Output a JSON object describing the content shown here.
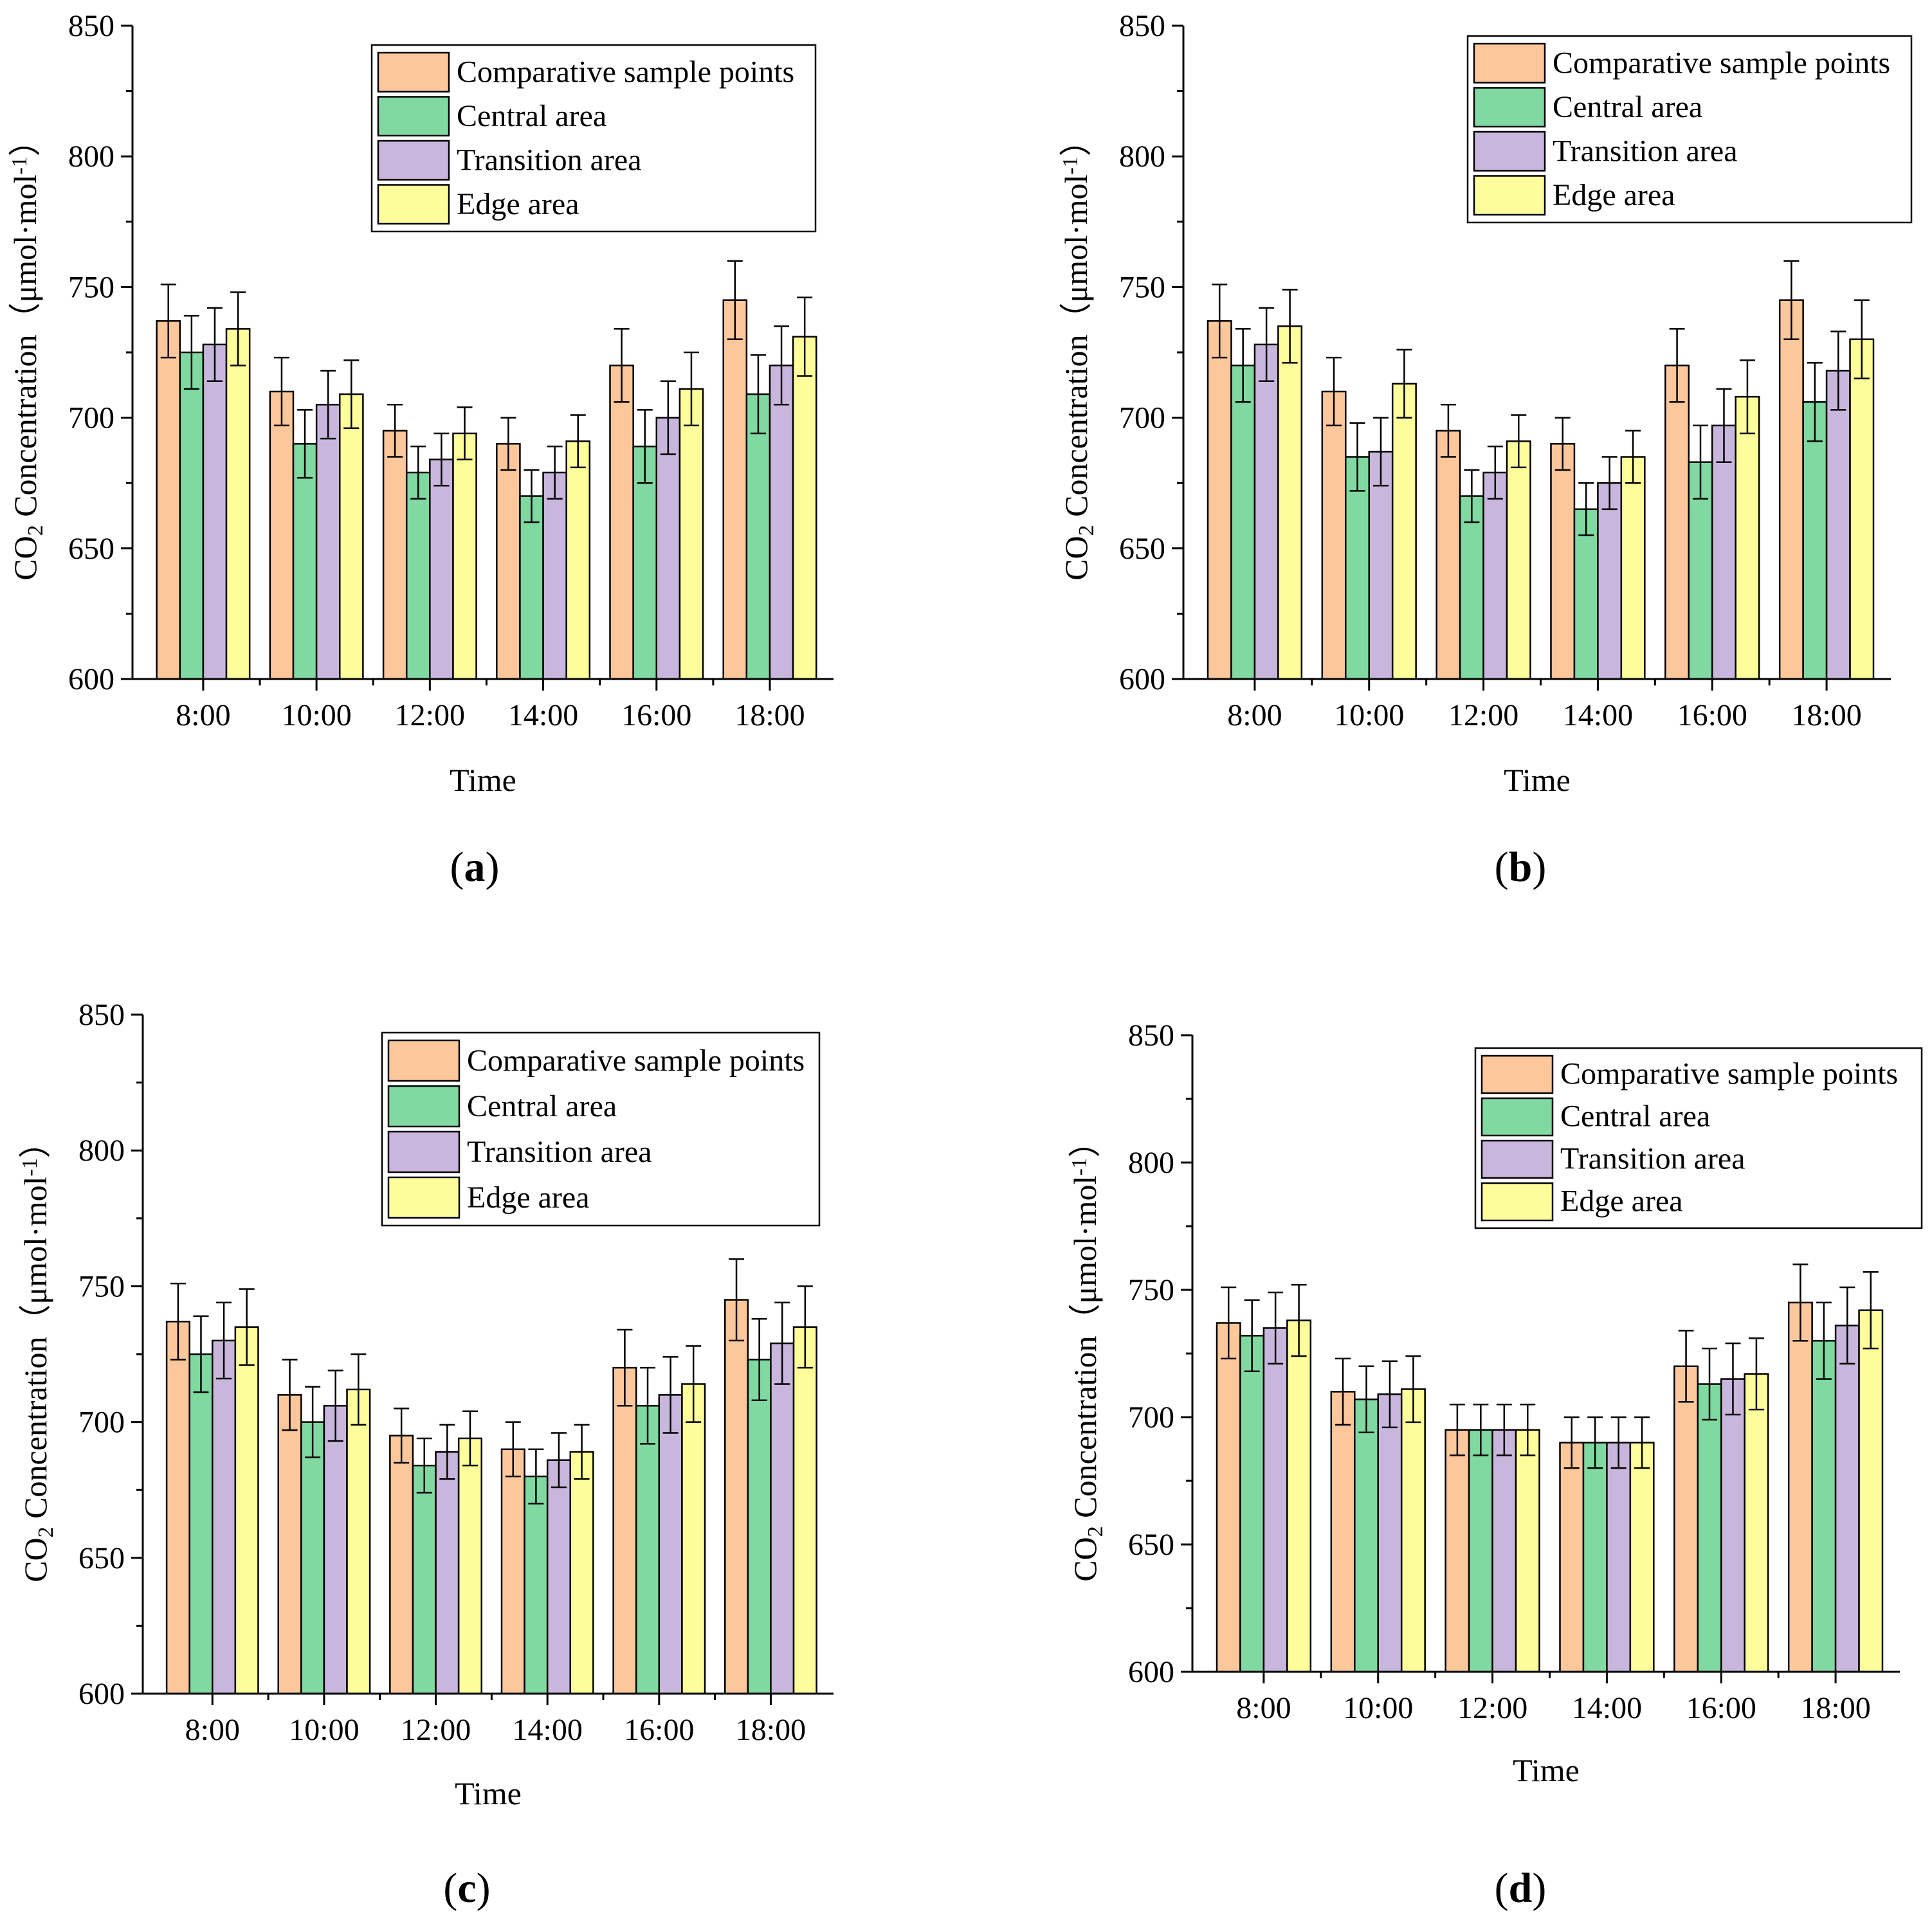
{
  "figure": {
    "panel_labels": [
      "a",
      "b",
      "c",
      "d"
    ],
    "series_colors": {
      "Comparative sample points": "#fcc79b",
      "Central area": "#7fd9a0",
      "Transition area": "#c9b6dc",
      "Edge area": "#fdfd9b"
    }
  },
  "chart_data": [
    {
      "panel": "a",
      "type": "bar",
      "title": "",
      "xlabel": "Time",
      "ylabel": {
        "prefix": "CO",
        "sub": "2",
        "main": " Concentration（μmol·mol",
        "sup": "-1",
        "suffix": "）"
      },
      "ylim": [
        600,
        850
      ],
      "yticks": [
        600,
        650,
        700,
        750,
        800,
        850
      ],
      "categories": [
        "8:00",
        "10:00",
        "12:00",
        "14:00",
        "16:00",
        "18:00"
      ],
      "series": [
        {
          "name": "Comparative sample points",
          "values": [
            737,
            710,
            695,
            690,
            720,
            745
          ],
          "errors": [
            14,
            13,
            10,
            10,
            14,
            15
          ]
        },
        {
          "name": "Central area",
          "values": [
            725,
            690,
            679,
            670,
            689,
            709
          ],
          "errors": [
            14,
            13,
            10,
            10,
            14,
            15
          ]
        },
        {
          "name": "Transition area",
          "values": [
            728,
            705,
            684,
            679,
            700,
            720
          ],
          "errors": [
            14,
            13,
            10,
            10,
            14,
            15
          ]
        },
        {
          "name": "Edge area",
          "values": [
            734,
            709,
            694,
            691,
            711,
            731
          ],
          "errors": [
            14,
            13,
            10,
            10,
            14,
            15
          ]
        }
      ],
      "legend": "top-right"
    },
    {
      "panel": "b",
      "type": "bar",
      "title": "",
      "xlabel": "Time",
      "ylabel": {
        "prefix": "CO",
        "sub": "2",
        "main": " Concentration（μmol·mol",
        "sup": "-1",
        "suffix": "）"
      },
      "ylim": [
        600,
        850
      ],
      "yticks": [
        600,
        650,
        700,
        750,
        800,
        850
      ],
      "categories": [
        "8:00",
        "10:00",
        "12:00",
        "14:00",
        "16:00",
        "18:00"
      ],
      "series": [
        {
          "name": "Comparative sample points",
          "values": [
            737,
            710,
            695,
            690,
            720,
            745
          ],
          "errors": [
            14,
            13,
            10,
            10,
            14,
            15
          ]
        },
        {
          "name": "Central area",
          "values": [
            720,
            685,
            670,
            665,
            683,
            706
          ],
          "errors": [
            14,
            13,
            10,
            10,
            14,
            15
          ]
        },
        {
          "name": "Transition area",
          "values": [
            728,
            687,
            679,
            675,
            697,
            718
          ],
          "errors": [
            14,
            13,
            10,
            10,
            14,
            15
          ]
        },
        {
          "name": "Edge area",
          "values": [
            735,
            713,
            691,
            685,
            708,
            730
          ],
          "errors": [
            14,
            13,
            10,
            10,
            14,
            15
          ]
        }
      ],
      "legend": "top-right"
    },
    {
      "panel": "c",
      "type": "bar",
      "title": "",
      "xlabel": "Time",
      "ylabel": {
        "prefix": "CO",
        "sub": "2",
        "main": " Concentration（μmol·mol",
        "sup": "-1",
        "suffix": "）"
      },
      "ylim": [
        600,
        850
      ],
      "yticks": [
        600,
        650,
        700,
        750,
        800,
        850
      ],
      "categories": [
        "8:00",
        "10:00",
        "12:00",
        "14:00",
        "16:00",
        "18:00"
      ],
      "series": [
        {
          "name": "Comparative sample points",
          "values": [
            737,
            710,
            695,
            690,
            720,
            745
          ],
          "errors": [
            14,
            13,
            10,
            10,
            14,
            15
          ]
        },
        {
          "name": "Central area",
          "values": [
            725,
            700,
            684,
            680,
            706,
            723
          ],
          "errors": [
            14,
            13,
            10,
            10,
            14,
            15
          ]
        },
        {
          "name": "Transition area",
          "values": [
            730,
            706,
            689,
            686,
            710,
            729
          ],
          "errors": [
            14,
            13,
            10,
            10,
            14,
            15
          ]
        },
        {
          "name": "Edge area",
          "values": [
            735,
            712,
            694,
            689,
            714,
            735
          ],
          "errors": [
            14,
            13,
            10,
            10,
            14,
            15
          ]
        }
      ],
      "legend": "top-right"
    },
    {
      "panel": "d",
      "type": "bar",
      "title": "",
      "xlabel": "Time",
      "ylabel": {
        "prefix": "CO",
        "sub": "2",
        "main": " Concentration（μmol·mol",
        "sup": "-1",
        "suffix": "）"
      },
      "ylim": [
        600,
        850
      ],
      "yticks": [
        600,
        650,
        700,
        750,
        800,
        850
      ],
      "categories": [
        "8:00",
        "10:00",
        "12:00",
        "14:00",
        "16:00",
        "18:00"
      ],
      "series": [
        {
          "name": "Comparative sample points",
          "values": [
            737,
            710,
            695,
            690,
            720,
            745
          ],
          "errors": [
            14,
            13,
            10,
            10,
            14,
            15
          ]
        },
        {
          "name": "Central area",
          "values": [
            732,
            707,
            695,
            690,
            713,
            730
          ],
          "errors": [
            14,
            13,
            10,
            10,
            14,
            15
          ]
        },
        {
          "name": "Transition area",
          "values": [
            735,
            709,
            695,
            690,
            715,
            736
          ],
          "errors": [
            14,
            13,
            10,
            10,
            14,
            15
          ]
        },
        {
          "name": "Edge area",
          "values": [
            738,
            711,
            695,
            690,
            717,
            742
          ],
          "errors": [
            14,
            13,
            10,
            10,
            14,
            15
          ]
        }
      ],
      "legend": "top-right"
    }
  ]
}
